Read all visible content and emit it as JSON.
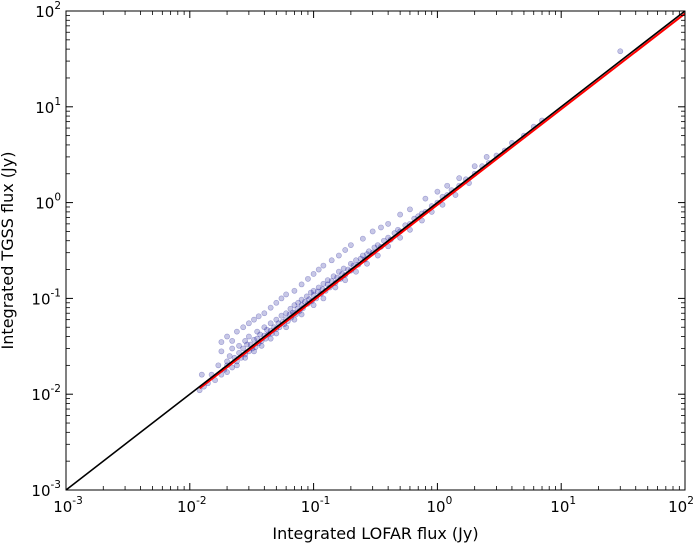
{
  "chart_data": {
    "type": "scatter",
    "xlabel": "Integrated LOFAR flux (Jy)",
    "ylabel": "Integrated TGSS flux (Jy)",
    "xscale": "log",
    "yscale": "log",
    "xlim": [
      0.001,
      100
    ],
    "ylim": [
      0.001,
      100
    ],
    "x_tick_labels": [
      {
        "value": 0.001,
        "base": "10",
        "exp": "-3"
      },
      {
        "value": 0.01,
        "base": "10",
        "exp": "-2"
      },
      {
        "value": 0.1,
        "base": "10",
        "exp": "-1"
      },
      {
        "value": 1,
        "base": "10",
        "exp": "0"
      },
      {
        "value": 10,
        "base": "10",
        "exp": "1"
      },
      {
        "value": 100,
        "base": "10",
        "exp": "2"
      }
    ],
    "y_tick_labels": [
      {
        "value": 0.001,
        "base": "10",
        "exp": "-3"
      },
      {
        "value": 0.01,
        "base": "10",
        "exp": "-2"
      },
      {
        "value": 0.1,
        "base": "10",
        "exp": "-1"
      },
      {
        "value": 1,
        "base": "10",
        "exp": "0"
      },
      {
        "value": 10,
        "base": "10",
        "exp": "1"
      },
      {
        "value": 100,
        "base": "10",
        "exp": "2"
      }
    ],
    "grid": false,
    "series": [
      {
        "kind": "points",
        "color": "#00008b",
        "opacity": 0.22,
        "points": [
          [
            0.012,
            0.011
          ],
          [
            0.0125,
            0.016
          ],
          [
            0.013,
            0.012
          ],
          [
            0.014,
            0.013
          ],
          [
            0.015,
            0.016
          ],
          [
            0.016,
            0.014
          ],
          [
            0.017,
            0.02
          ],
          [
            0.018,
            0.016
          ],
          [
            0.018,
            0.028
          ],
          [
            0.019,
            0.018
          ],
          [
            0.02,
            0.022
          ],
          [
            0.02,
            0.02
          ],
          [
            0.021,
            0.025
          ],
          [
            0.022,
            0.019
          ],
          [
            0.022,
            0.03
          ],
          [
            0.023,
            0.024
          ],
          [
            0.024,
            0.022
          ],
          [
            0.025,
            0.032
          ],
          [
            0.025,
            0.027
          ],
          [
            0.026,
            0.024
          ],
          [
            0.027,
            0.03
          ],
          [
            0.028,
            0.026
          ],
          [
            0.028,
            0.036
          ],
          [
            0.029,
            0.033
          ],
          [
            0.03,
            0.028
          ],
          [
            0.03,
            0.04
          ],
          [
            0.031,
            0.033
          ],
          [
            0.032,
            0.03
          ],
          [
            0.033,
            0.037
          ],
          [
            0.034,
            0.031
          ],
          [
            0.035,
            0.045
          ],
          [
            0.035,
            0.038
          ],
          [
            0.036,
            0.034
          ],
          [
            0.037,
            0.042
          ],
          [
            0.038,
            0.036
          ],
          [
            0.04,
            0.05
          ],
          [
            0.04,
            0.041
          ],
          [
            0.041,
            0.038
          ],
          [
            0.042,
            0.047
          ],
          [
            0.043,
            0.042
          ],
          [
            0.045,
            0.055
          ],
          [
            0.045,
            0.046
          ],
          [
            0.046,
            0.043
          ],
          [
            0.048,
            0.05
          ],
          [
            0.05,
            0.06
          ],
          [
            0.05,
            0.048
          ],
          [
            0.052,
            0.055
          ],
          [
            0.053,
            0.05
          ],
          [
            0.055,
            0.066
          ],
          [
            0.056,
            0.057
          ],
          [
            0.058,
            0.054
          ],
          [
            0.06,
            0.07
          ],
          [
            0.06,
            0.061
          ],
          [
            0.062,
            0.058
          ],
          [
            0.064,
            0.068
          ],
          [
            0.065,
            0.078
          ],
          [
            0.066,
            0.063
          ],
          [
            0.068,
            0.071
          ],
          [
            0.07,
            0.085
          ],
          [
            0.07,
            0.07
          ],
          [
            0.072,
            0.068
          ],
          [
            0.074,
            0.078
          ],
          [
            0.075,
            0.09
          ],
          [
            0.077,
            0.074
          ],
          [
            0.08,
            0.085
          ],
          [
            0.08,
            0.097
          ],
          [
            0.082,
            0.079
          ],
          [
            0.085,
            0.092
          ],
          [
            0.088,
            0.105
          ],
          [
            0.09,
            0.088
          ],
          [
            0.092,
            0.098
          ],
          [
            0.095,
            0.115
          ],
          [
            0.097,
            0.094
          ],
          [
            0.1,
            0.108
          ],
          [
            0.1,
            0.12
          ],
          [
            0.105,
            0.1
          ],
          [
            0.108,
            0.118
          ],
          [
            0.11,
            0.13
          ],
          [
            0.115,
            0.112
          ],
          [
            0.118,
            0.125
          ],
          [
            0.12,
            0.142
          ],
          [
            0.125,
            0.12
          ],
          [
            0.13,
            0.14
          ],
          [
            0.13,
            0.155
          ],
          [
            0.135,
            0.13
          ],
          [
            0.14,
            0.152
          ],
          [
            0.145,
            0.17
          ],
          [
            0.15,
            0.145
          ],
          [
            0.155,
            0.165
          ],
          [
            0.16,
            0.19
          ],
          [
            0.165,
            0.16
          ],
          [
            0.17,
            0.18
          ],
          [
            0.175,
            0.205
          ],
          [
            0.18,
            0.175
          ],
          [
            0.19,
            0.2
          ],
          [
            0.2,
            0.23
          ],
          [
            0.2,
            0.195
          ],
          [
            0.21,
            0.22
          ],
          [
            0.22,
            0.25
          ],
          [
            0.23,
            0.225
          ],
          [
            0.24,
            0.26
          ],
          [
            0.25,
            0.28
          ],
          [
            0.26,
            0.255
          ],
          [
            0.27,
            0.29
          ],
          [
            0.28,
            0.31
          ],
          [
            0.3,
            0.3
          ],
          [
            0.31,
            0.34
          ],
          [
            0.33,
            0.36
          ],
          [
            0.35,
            0.345
          ],
          [
            0.37,
            0.4
          ],
          [
            0.4,
            0.43
          ],
          [
            0.42,
            0.41
          ],
          [
            0.45,
            0.48
          ],
          [
            0.48,
            0.52
          ],
          [
            0.5,
            0.5
          ],
          [
            0.55,
            0.58
          ],
          [
            0.6,
            0.6
          ],
          [
            0.65,
            0.68
          ],
          [
            0.7,
            0.72
          ],
          [
            0.75,
            0.77
          ],
          [
            0.8,
            0.8
          ],
          [
            0.9,
            0.92
          ],
          [
            1.0,
            1.0
          ],
          [
            1.1,
            1.15
          ],
          [
            1.2,
            1.2
          ],
          [
            1.3,
            1.35
          ],
          [
            1.5,
            1.5
          ],
          [
            1.7,
            1.75
          ],
          [
            2.0,
            2.0
          ],
          [
            2.3,
            2.4
          ],
          [
            2.6,
            2.6
          ],
          [
            3.0,
            3.1
          ],
          [
            3.5,
            3.5
          ],
          [
            4.0,
            4.2
          ],
          [
            5.0,
            5.0
          ],
          [
            6.0,
            6.2
          ],
          [
            7.0,
            7.2
          ],
          [
            30.0,
            38.0
          ],
          [
            0.018,
            0.035
          ],
          [
            0.02,
            0.04
          ],
          [
            0.022,
            0.036
          ],
          [
            0.024,
            0.045
          ],
          [
            0.027,
            0.05
          ],
          [
            0.03,
            0.055
          ],
          [
            0.033,
            0.06
          ],
          [
            0.036,
            0.065
          ],
          [
            0.04,
            0.07
          ],
          [
            0.045,
            0.08
          ],
          [
            0.05,
            0.09
          ],
          [
            0.055,
            0.1
          ],
          [
            0.06,
            0.11
          ],
          [
            0.07,
            0.12
          ],
          [
            0.08,
            0.14
          ],
          [
            0.09,
            0.16
          ],
          [
            0.1,
            0.18
          ],
          [
            0.11,
            0.2
          ],
          [
            0.12,
            0.22
          ],
          [
            0.14,
            0.25
          ],
          [
            0.16,
            0.28
          ],
          [
            0.18,
            0.32
          ],
          [
            0.2,
            0.36
          ],
          [
            0.25,
            0.42
          ],
          [
            0.3,
            0.5
          ],
          [
            0.35,
            0.55
          ],
          [
            0.4,
            0.6
          ],
          [
            0.5,
            0.75
          ],
          [
            0.6,
            0.85
          ],
          [
            0.8,
            1.1
          ],
          [
            1.0,
            1.3
          ],
          [
            1.2,
            1.5
          ],
          [
            1.5,
            1.8
          ],
          [
            2.0,
            2.4
          ],
          [
            2.5,
            3.0
          ],
          [
            0.02,
            0.017
          ],
          [
            0.024,
            0.02
          ],
          [
            0.028,
            0.024
          ],
          [
            0.033,
            0.028
          ],
          [
            0.038,
            0.032
          ],
          [
            0.045,
            0.038
          ],
          [
            0.05,
            0.043
          ],
          [
            0.06,
            0.05
          ],
          [
            0.07,
            0.06
          ],
          [
            0.08,
            0.068
          ],
          [
            0.1,
            0.085
          ],
          [
            0.12,
            0.1
          ],
          [
            0.15,
            0.13
          ],
          [
            0.18,
            0.155
          ],
          [
            0.22,
            0.19
          ],
          [
            0.27,
            0.23
          ],
          [
            0.33,
            0.28
          ],
          [
            0.4,
            0.35
          ],
          [
            0.5,
            0.43
          ],
          [
            0.6,
            0.52
          ],
          [
            0.75,
            0.65
          ],
          [
            0.9,
            0.8
          ],
          [
            1.1,
            0.95
          ],
          [
            1.4,
            1.2
          ],
          [
            1.8,
            1.6
          ]
        ]
      },
      {
        "kind": "line",
        "color": "#ff0000",
        "points": [
          [
            0.012,
            0.0115
          ],
          [
            100,
            94
          ]
        ]
      },
      {
        "kind": "line",
        "color": "#000000",
        "points": [
          [
            0.001,
            0.001
          ],
          [
            100,
            100
          ]
        ]
      }
    ]
  }
}
